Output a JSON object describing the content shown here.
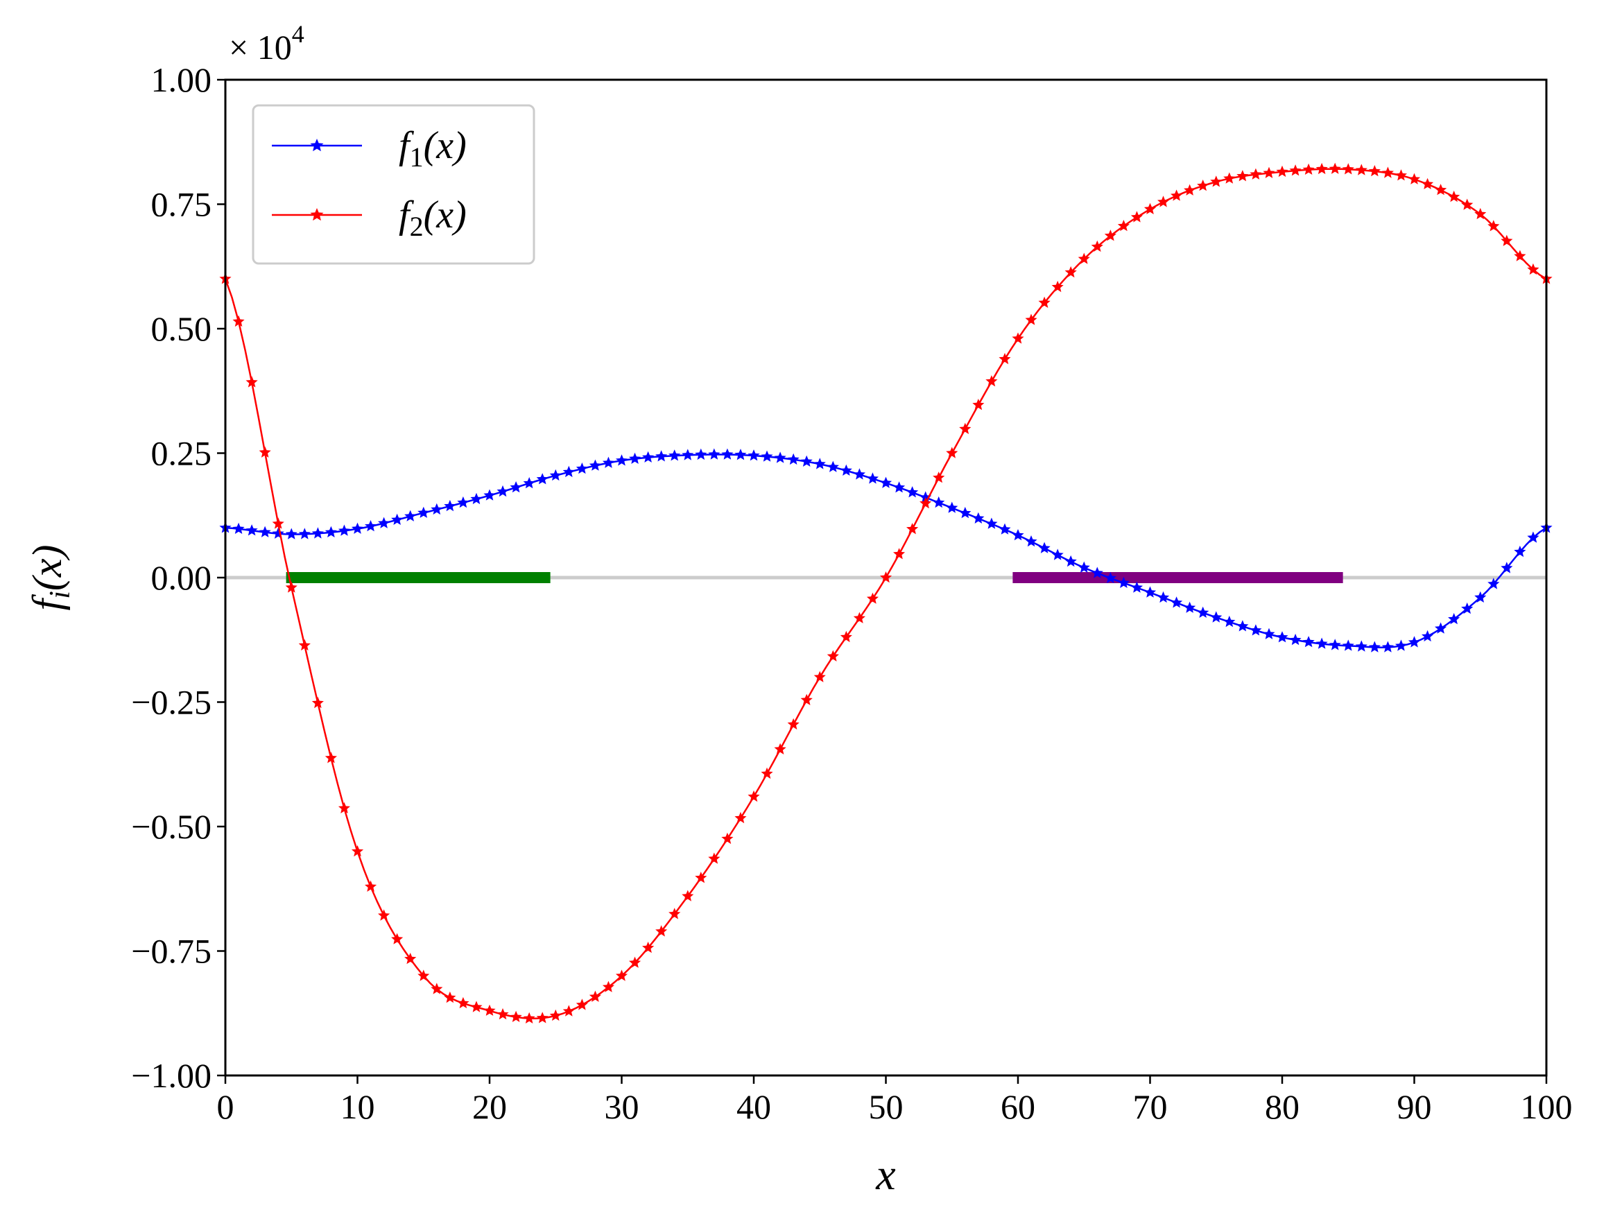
{
  "chart_data": {
    "type": "line",
    "title": "",
    "xlabel": "x",
    "ylabel": "f_i(x)",
    "xlim": [
      0,
      100
    ],
    "ylim": [
      -1.0,
      1.0
    ],
    "y_scale_multiplier": "× 10⁴",
    "multiplier_parts": {
      "prefix": "× 10",
      "exponent": "4"
    },
    "xticks": [
      0,
      10,
      20,
      30,
      40,
      50,
      60,
      70,
      80,
      90,
      100
    ],
    "xtick_labels": [
      "0",
      "10",
      "20",
      "30",
      "40",
      "50",
      "60",
      "70",
      "80",
      "90",
      "100"
    ],
    "yticks": [
      1.0,
      0.75,
      0.5,
      0.25,
      0.0,
      -0.25,
      -0.5,
      -0.75,
      -1.0
    ],
    "ytick_labels": [
      "1.00",
      "0.75",
      "0.50",
      "0.25",
      "0.00",
      "−0.25",
      "−0.50",
      "−0.75",
      "−1.00"
    ],
    "grid": false,
    "legend_position": "top-left",
    "x": [
      0,
      5,
      10,
      15,
      20,
      25,
      30,
      35,
      40,
      45,
      50,
      55,
      60,
      65,
      70,
      75,
      80,
      85,
      90,
      95,
      100
    ],
    "series": [
      {
        "name": "f_1(x)",
        "legend_base": "f",
        "legend_sub": "1",
        "legend_tail": "(x)",
        "color": "#0000ff",
        "marker": "star",
        "values": [
          0.1,
          0.087,
          0.098,
          0.13,
          0.165,
          0.205,
          0.235,
          0.246,
          0.245,
          0.228,
          0.19,
          0.14,
          0.085,
          0.02,
          -0.03,
          -0.08,
          -0.12,
          -0.137,
          -0.13,
          -0.04,
          0.1
        ]
      },
      {
        "name": "f_2(x)",
        "legend_base": "f",
        "legend_sub": "2",
        "legend_tail": "(x)",
        "color": "#ff0000",
        "marker": "star",
        "values": [
          0.6,
          -0.02,
          -0.55,
          -0.8,
          -0.87,
          -0.88,
          -0.8,
          -0.64,
          -0.44,
          -0.2,
          0.0,
          0.25,
          0.48,
          0.64,
          0.74,
          0.795,
          0.815,
          0.82,
          0.8,
          0.73,
          0.6
        ]
      }
    ],
    "baseline": {
      "y": 0,
      "color": "#cccccc"
    },
    "intervals": [
      {
        "x_start": 4.6,
        "x_end": 24.6,
        "y": 0,
        "color": "#008000"
      },
      {
        "x_start": 59.6,
        "x_end": 84.6,
        "y": 0,
        "color": "#800080"
      }
    ]
  }
}
